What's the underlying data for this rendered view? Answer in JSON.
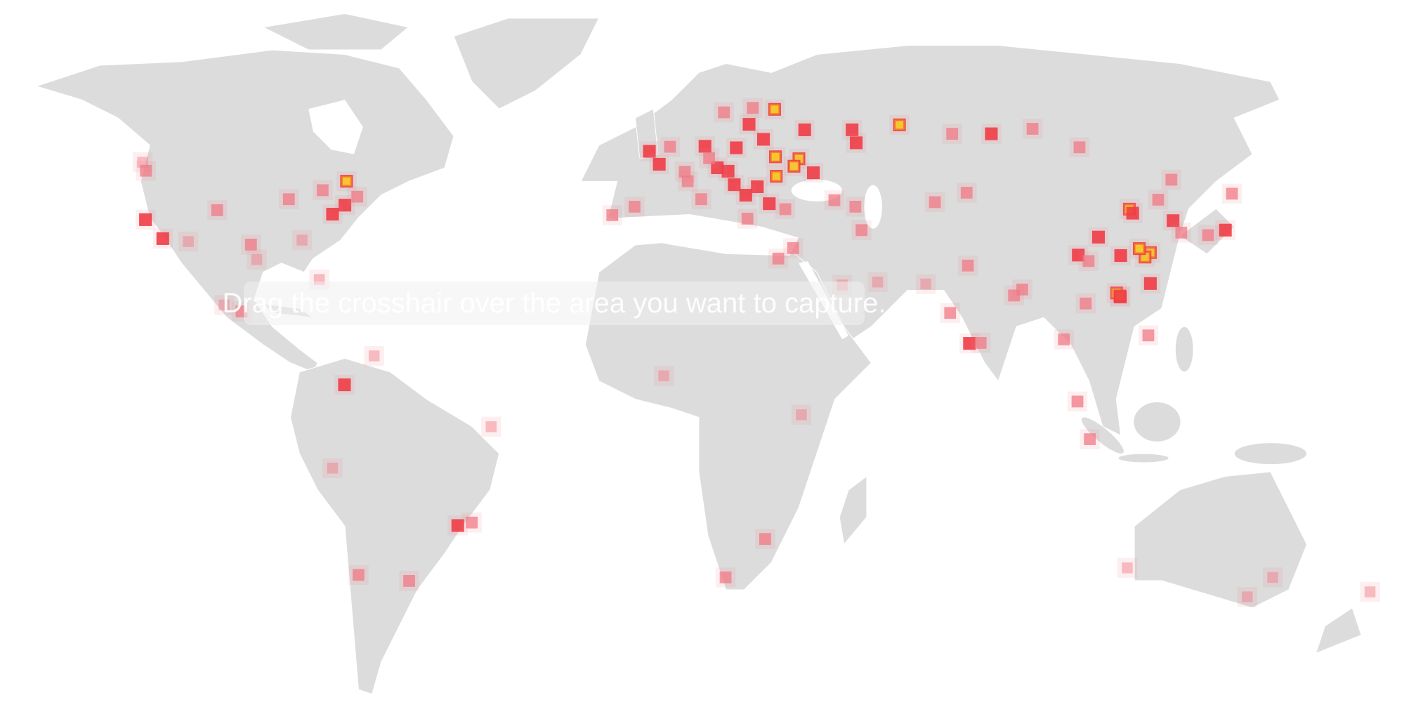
{
  "overlay": {
    "text": "Drag the crosshair over the area you want to capture."
  },
  "colors": {
    "land": "#dcdcdc",
    "low": "#f07a85",
    "mid": "#f03c46",
    "high_core": "#f7c531",
    "high_border": "#f07a28"
  },
  "heatmap": {
    "legend": "none",
    "hotspots": [
      [
        -0.1,
        51.5,
        3
      ],
      [
        2.3,
        48.9,
        3
      ],
      [
        -3.7,
        40.4,
        2
      ],
      [
        -9.1,
        38.7,
        2
      ],
      [
        13.4,
        52.5,
        3
      ],
      [
        21,
        52.2,
        3
      ],
      [
        30.5,
        50.4,
        4
      ],
      [
        36.2,
        50,
        4
      ],
      [
        37.6,
        55.8,
        3
      ],
      [
        30.3,
        59.9,
        4
      ],
      [
        27.6,
        53.9,
        3
      ],
      [
        19,
        47.5,
        3
      ],
      [
        26.1,
        44.4,
        3
      ],
      [
        30.7,
        46.5,
        4
      ],
      [
        29,
        41,
        3
      ],
      [
        32.9,
        39.9,
        2
      ],
      [
        12.5,
        41.9,
        2
      ],
      [
        9.2,
        45.5,
        2
      ],
      [
        16.4,
        48.2,
        3
      ],
      [
        14.4,
        50.1,
        2
      ],
      [
        18,
        59.3,
        2
      ],
      [
        25,
        60.2,
        2
      ],
      [
        24.1,
        56.9,
        3
      ],
      [
        20.5,
        44.8,
        3
      ],
      [
        23.3,
        42.7,
        3
      ],
      [
        23.7,
        38,
        2
      ],
      [
        4.9,
        52.4,
        2
      ],
      [
        8.5,
        47.4,
        2
      ],
      [
        35,
        48.5,
        4
      ],
      [
        39.7,
        47.2,
        3
      ],
      [
        49.1,
        55.8,
        3
      ],
      [
        50.1,
        53.2,
        3
      ],
      [
        60.6,
        56.8,
        4
      ],
      [
        82.9,
        55,
        3
      ],
      [
        73.4,
        55,
        2
      ],
      [
        92.9,
        56,
        2
      ],
      [
        104.3,
        52.3,
        2
      ],
      [
        44.8,
        41.7,
        2
      ],
      [
        49.9,
        40.4,
        2
      ],
      [
        51.4,
        35.7,
        2
      ],
      [
        55.3,
        25.3,
        1
      ],
      [
        46.7,
        24.7,
        1
      ],
      [
        31.2,
        30,
        2
      ],
      [
        34.8,
        32.1,
        2
      ],
      [
        77.2,
        28.6,
        2
      ],
      [
        72.9,
        19.1,
        2
      ],
      [
        77.6,
        13,
        3
      ],
      [
        80.3,
        13.1,
        2
      ],
      [
        88.4,
        22.6,
        2
      ],
      [
        90.4,
        23.8,
        2
      ],
      [
        67,
        24.9,
        1
      ],
      [
        76.9,
        43.2,
        2
      ],
      [
        69.2,
        41.3,
        2
      ],
      [
        100.5,
        13.8,
        2
      ],
      [
        105.8,
        21,
        2
      ],
      [
        103.8,
        1.35,
        2
      ],
      [
        106.8,
        -6.2,
        2
      ],
      [
        121,
        14.6,
        2
      ],
      [
        116.4,
        39.9,
        4
      ],
      [
        117.2,
        39.1,
        3
      ],
      [
        121.5,
        31.2,
        4
      ],
      [
        120.2,
        30.3,
        4
      ],
      [
        118.8,
        32,
        4
      ],
      [
        114.3,
        30.6,
        3
      ],
      [
        104,
        30.7,
        3
      ],
      [
        106.5,
        29.5,
        2
      ],
      [
        113.3,
        23.1,
        4
      ],
      [
        114.1,
        22.5,
        4
      ],
      [
        108.9,
        34.3,
        3
      ],
      [
        126.6,
        45.8,
        2
      ],
      [
        123.4,
        41.8,
        2
      ],
      [
        127,
        37.6,
        3
      ],
      [
        129,
        35.2,
        2
      ],
      [
        121.5,
        25,
        3
      ],
      [
        114.2,
        22.3,
        3
      ],
      [
        135.5,
        34.7,
        2
      ],
      [
        139.7,
        35.7,
        3
      ],
      [
        141.3,
        43,
        2
      ],
      [
        151.2,
        -33.9,
        1
      ],
      [
        145,
        -37.8,
        1
      ],
      [
        115.9,
        -32,
        1
      ],
      [
        174.8,
        -36.8,
        1
      ],
      [
        28,
        -26.2,
        2
      ],
      [
        18.4,
        -33.9,
        2
      ],
      [
        3.4,
        6.5,
        1
      ],
      [
        36.8,
        -1.3,
        1
      ],
      [
        -46.6,
        -23.5,
        3
      ],
      [
        -43.2,
        -22.9,
        2
      ],
      [
        -58.4,
        -34.6,
        2
      ],
      [
        -70.7,
        -33.4,
        2
      ],
      [
        -77,
        -12,
        1
      ],
      [
        -74.1,
        4.7,
        3
      ],
      [
        -66.9,
        10.5,
        1
      ],
      [
        -38.5,
        -3.7,
        1
      ],
      [
        -99.1,
        19.4,
        2
      ],
      [
        -103.3,
        20.7,
        1
      ],
      [
        -74,
        40.7,
        3
      ],
      [
        -71,
        42.4,
        2
      ],
      [
        -79.4,
        43.7,
        2
      ],
      [
        -73.6,
        45.5,
        4
      ],
      [
        -77,
        38.9,
        3
      ],
      [
        -87.6,
        41.9,
        2
      ],
      [
        -84.4,
        33.7,
        1
      ],
      [
        -96.8,
        32.8,
        2
      ],
      [
        -95.4,
        29.8,
        1
      ],
      [
        -105,
        39.7,
        2
      ],
      [
        -122.3,
        47.6,
        2
      ],
      [
        -122.4,
        37.8,
        3
      ],
      [
        -118.2,
        34,
        3
      ],
      [
        -80.2,
        25.8,
        1
      ],
      [
        -112,
        33.4,
        1
      ],
      [
        -123.1,
        49.3,
        1
      ]
    ]
  }
}
